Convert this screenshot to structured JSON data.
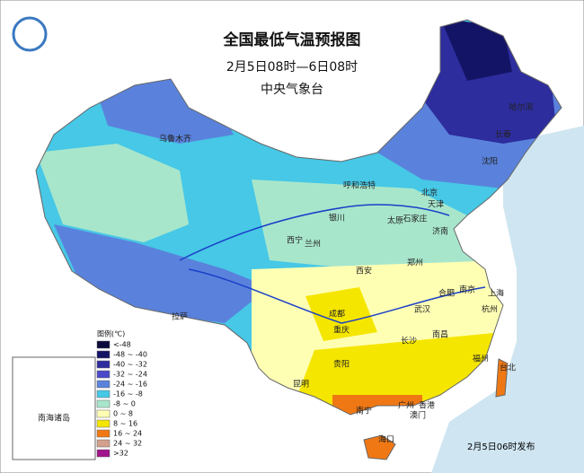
{
  "header": {
    "title": "全国最低气温预报图",
    "subtitle": "2月5日08时—6日08时",
    "issuer": "中央气象台"
  },
  "legend": {
    "title": "图例(℃)",
    "items": [
      {
        "label": "<-48",
        "color": "#0a0a3c"
      },
      {
        "label": "-48 ~ -40",
        "color": "#141466"
      },
      {
        "label": "-40 ~ -32",
        "color": "#2d2d9e"
      },
      {
        "label": "-32 ~ -24",
        "color": "#4a4ac8"
      },
      {
        "label": "-24 ~ -16",
        "color": "#5a82dc"
      },
      {
        "label": "-16 ~ -8",
        "color": "#46c8e6"
      },
      {
        "label": "-8 ~ 0",
        "color": "#a8e6cc"
      },
      {
        "label": "0 ~ 8",
        "color": "#ffffb4"
      },
      {
        "label": "8 ~ 16",
        "color": "#f5e600"
      },
      {
        "label": "16 ~ 24",
        "color": "#f07814"
      },
      {
        "label": "24 ~ 32",
        "color": "#d2a08c"
      },
      {
        "label": ">32",
        "color": "#a0148c"
      }
    ]
  },
  "cities": [
    "乌鲁木齐",
    "哈尔滨",
    "长春",
    "沈阳",
    "呼和浩特",
    "北京",
    "天津",
    "银川",
    "太原",
    "石家庄",
    "西宁",
    "兰州",
    "济南",
    "郑州",
    "西安",
    "合肥",
    "南京",
    "上海",
    "成都",
    "武汉",
    "杭州",
    "重庆",
    "长沙",
    "南昌",
    "拉萨",
    "贵阳",
    "福州",
    "台北",
    "昆明",
    "南宁",
    "广州",
    "香港",
    "澳门",
    "海口"
  ],
  "inset": {
    "label": "南海诸岛"
  },
  "footer": {
    "published": "2月5日06时发布"
  }
}
